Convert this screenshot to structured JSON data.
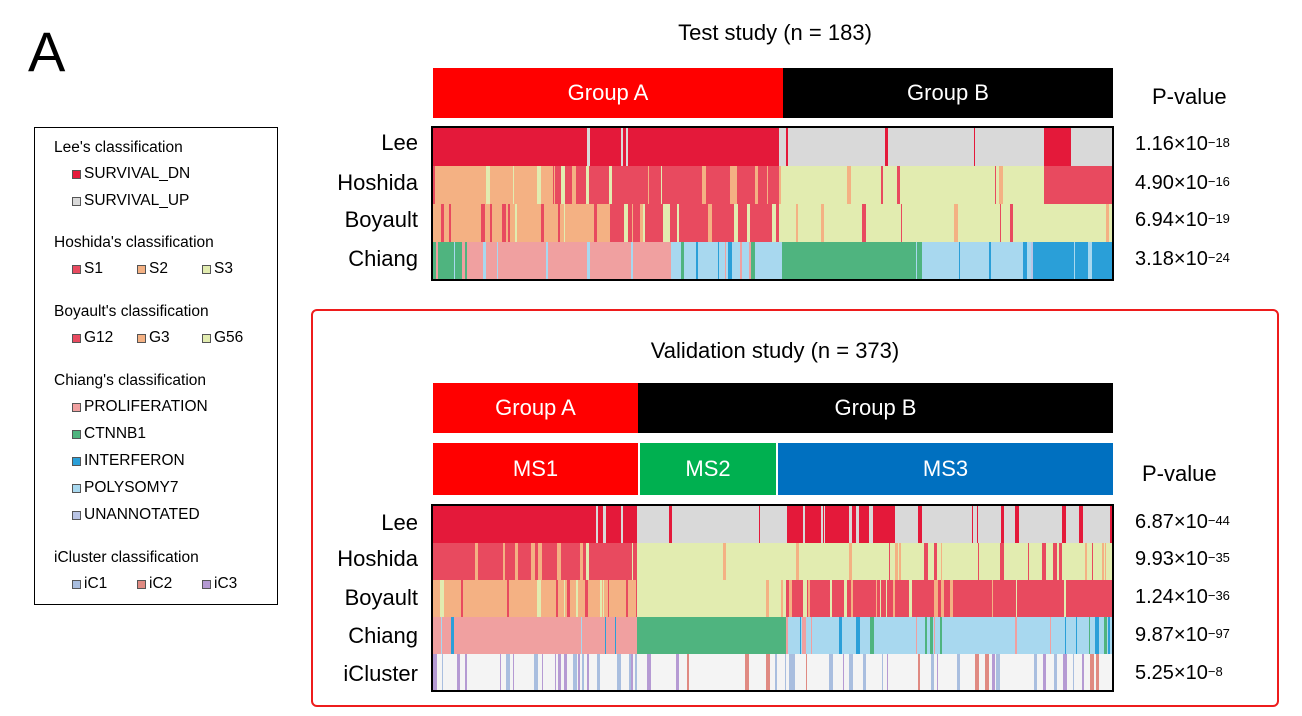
{
  "panel_letter": "A",
  "legend": {
    "sections": [
      {
        "title": "Lee's classification",
        "layout": "stack",
        "items": [
          {
            "label": "SURVIVAL_DN",
            "color": "#e4193a"
          },
          {
            "label": "SURVIVAL_UP",
            "color": "#d9d9d9"
          }
        ]
      },
      {
        "title": "Hoshida's classification",
        "layout": "row",
        "items": [
          {
            "label": "S1",
            "color": "#e84a5f"
          },
          {
            "label": "S2",
            "color": "#f4b183"
          },
          {
            "label": "S3",
            "color": "#e2ecb0"
          }
        ]
      },
      {
        "title": "Boyault's classification",
        "layout": "row",
        "items": [
          {
            "label": "G12",
            "color": "#e84a5f"
          },
          {
            "label": "G3",
            "color": "#f4b183"
          },
          {
            "label": "G56",
            "color": "#e2ecb0"
          }
        ]
      },
      {
        "title": "Chiang's classification",
        "layout": "stack",
        "items": [
          {
            "label": "PROLIFERATION",
            "color": "#f0a0a0"
          },
          {
            "label": "CTNNB1",
            "color": "#4fb47f"
          },
          {
            "label": "INTERFERON",
            "color": "#2a9fd8"
          },
          {
            "label": "POLYSOMY7",
            "color": "#a8d8ef"
          },
          {
            "label": "UNANNOTATED",
            "color": "#b9c4e4"
          }
        ]
      },
      {
        "title": "iCluster classification",
        "layout": "row",
        "items": [
          {
            "label": "iC1",
            "color": "#a9bedf"
          },
          {
            "label": "iC2",
            "color": "#e08a82"
          },
          {
            "label": "iC3",
            "color": "#b59ad3"
          }
        ]
      }
    ]
  },
  "test_study": {
    "title": "Test study (n = 183)",
    "groups": [
      {
        "label": "Group A",
        "color": "#ff0000"
      },
      {
        "label": "Group B",
        "color": "#000000"
      }
    ],
    "pvalue_header": "P-value",
    "rows": [
      {
        "label": "Lee",
        "p_mantissa": "1.16×10",
        "p_exp": "−18"
      },
      {
        "label": "Hoshida",
        "p_mantissa": "4.90×10",
        "p_exp": "−16"
      },
      {
        "label": "Boyault",
        "p_mantissa": "6.94×10",
        "p_exp": "−19"
      },
      {
        "label": "Chiang",
        "p_mantissa": "3.18×10",
        "p_exp": "−24"
      }
    ]
  },
  "validation_study": {
    "title": "Validation study (n = 373)",
    "groups": [
      {
        "label": "Group A",
        "color": "#ff0000"
      },
      {
        "label": "Group B",
        "color": "#000000"
      }
    ],
    "subtypes": [
      {
        "label": "MS1",
        "color": "#ff0000"
      },
      {
        "label": "MS2",
        "color": "#00b050"
      },
      {
        "label": "MS3",
        "color": "#0070c0"
      }
    ],
    "pvalue_header": "P-value",
    "rows": [
      {
        "label": "Lee",
        "p_mantissa": "6.87×10",
        "p_exp": "−44"
      },
      {
        "label": "Hoshida",
        "p_mantissa": "9.93×10",
        "p_exp": "−35"
      },
      {
        "label": "Boyault",
        "p_mantissa": "1.24×10",
        "p_exp": "−36"
      },
      {
        "label": "Chiang",
        "p_mantissa": "9.87×10",
        "p_exp": "−97"
      },
      {
        "label": "iCluster",
        "p_mantissa": "5.25×10",
        "p_exp": "−8"
      }
    ]
  }
}
